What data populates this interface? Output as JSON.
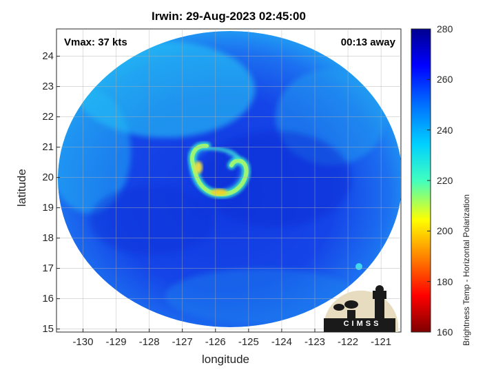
{
  "title": "Irwin: 29-Aug-2023 02:45:00",
  "vmax_label": "Vmax: 37 kts",
  "time_away_label": "00:13 away",
  "x_axis": {
    "label": "longitude",
    "ticks": [
      "-130",
      "-129",
      "-128",
      "-127",
      "-126",
      "-125",
      "-124",
      "-123",
      "-122",
      "-121"
    ],
    "range": [
      -130.8,
      -120.4
    ]
  },
  "y_axis": {
    "label": "latitude",
    "ticks": [
      "24",
      "23",
      "22",
      "21",
      "20",
      "19",
      "18",
      "17",
      "16",
      "15"
    ],
    "range": [
      14.9,
      24.9
    ]
  },
  "colorbar": {
    "label": "Brightness Temp - Horizontal Polarization",
    "ticks": [
      "280",
      "260",
      "240",
      "220",
      "200",
      "180",
      "160"
    ],
    "range": [
      160,
      280
    ],
    "colormap": "jet",
    "colors": [
      "#7f0000",
      "#ff0000",
      "#ffff00",
      "#00ffff",
      "#0000ff",
      "#00008f"
    ]
  },
  "storm_center": {
    "lon": -126.0,
    "lat": 19.8
  },
  "logo": {
    "text": "CIMSS"
  },
  "colors": {
    "background_outer": "#2ca0f0",
    "background_inner": "#1245e6",
    "band_warm": "#f2e020",
    "band_mid": "#3cf0c0"
  }
}
